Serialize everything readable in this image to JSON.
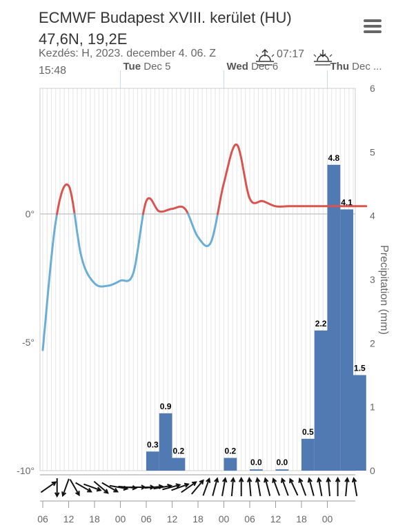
{
  "header": {
    "title": "ECMWF Budapest XVIII. kerület (HU)",
    "coords": "47,6N, 19,2E",
    "subtitle": "Kezdés: H, 2023. december 4. 06. Z",
    "sunrise_time": "07:17",
    "sunset_time": "15:48",
    "menu_icon": "hamburger-menu-icon"
  },
  "colors": {
    "temp_above": "#d9534f",
    "temp_below": "#6aaed6",
    "precip_bar": "#5179b2",
    "grid": "#e6e6e6",
    "zero_line": "#bfbfbf"
  },
  "chart_data": {
    "type": "line+bar",
    "x_hours_label": "hours since 2023-12-04 06Z",
    "x_tick_labels": [
      "06",
      "12",
      "18",
      "00",
      "06",
      "12",
      "18",
      "00",
      "06",
      "12",
      "18",
      "00"
    ],
    "day_labels": [
      {
        "day": "Tue",
        "date": "Dec 5"
      },
      {
        "day": "Wed",
        "date": "Dec 6"
      },
      {
        "day": "Thu",
        "date": "Dec ..."
      }
    ],
    "y_left": {
      "ticks": [
        "0°",
        "-5°",
        "-10°"
      ],
      "range": [
        -10,
        6
      ]
    },
    "y_right": {
      "label": "Precipitation (mm)",
      "ticks": [
        "0",
        "1",
        "2",
        "3",
        "4",
        "5",
        "6"
      ],
      "range": [
        0,
        6
      ]
    },
    "temperature": {
      "x": [
        0,
        3,
        6,
        9,
        12,
        15,
        18,
        21,
        24,
        27,
        30,
        33,
        36,
        39,
        42,
        45,
        48,
        51,
        54,
        57,
        60,
        63,
        66,
        69,
        72,
        75
      ],
      "y": [
        -5.3,
        -0.3,
        1.1,
        -1.7,
        -2.7,
        -2.8,
        -2.6,
        -2.3,
        0.5,
        0.1,
        0.2,
        0.2,
        -0.9,
        -1.1,
        1.2,
        2.7,
        0.6,
        0.5,
        0.3,
        0.3,
        0.3,
        0.3,
        0.3,
        0.3,
        0.3,
        0.3
      ]
    },
    "precipitation": [
      {
        "x": 24,
        "value": 0.3,
        "label": "0.3"
      },
      {
        "x": 27,
        "value": 0.9,
        "label": "0.9"
      },
      {
        "x": 30,
        "value": 0.2,
        "label": "0.2"
      },
      {
        "x": 42,
        "value": 0.2,
        "label": "0.2"
      },
      {
        "x": 48,
        "value": 0.0,
        "label": "0.0"
      },
      {
        "x": 54,
        "value": 0.0,
        "label": "0.0"
      },
      {
        "x": 60,
        "value": 0.5,
        "label": "0.5"
      },
      {
        "x": 63,
        "value": 2.2,
        "label": "2.2"
      },
      {
        "x": 66,
        "value": 4.8,
        "label": "4.8"
      },
      {
        "x": 69,
        "value": 4.1,
        "label": "4.1"
      },
      {
        "x": 72,
        "value": 1.5,
        "label": "1.5"
      }
    ],
    "wind_directions_deg": [
      235,
      0,
      20,
      330,
      300,
      290,
      310,
      300,
      280,
      275,
      270,
      270,
      265,
      260,
      255,
      250,
      235,
      220,
      200,
      195,
      190,
      185,
      180,
      175,
      170,
      165,
      160,
      160,
      155,
      160,
      165,
      170,
      175,
      180,
      185,
      170
    ]
  }
}
